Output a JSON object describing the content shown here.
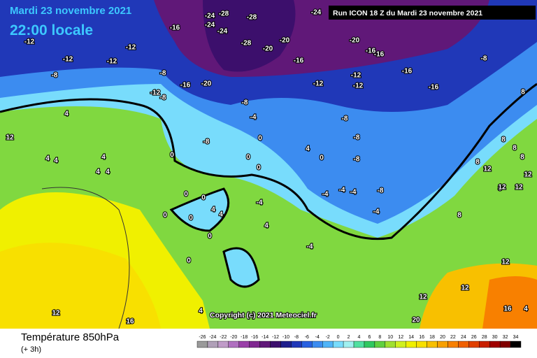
{
  "header": {
    "date": "Mardi 23 novembre 2021",
    "time": "22:00 locale",
    "run": "Run ICON 18 Z du Mardi 23 novembre 2021"
  },
  "copyright": "Copyright (c) 2021 Meteociel.fr",
  "footer": {
    "title": "Température 850hPa",
    "step": "(+ 3h)"
  },
  "legend": {
    "ticks": [
      -26,
      -24,
      -22,
      -20,
      -18,
      -16,
      -14,
      -12,
      -10,
      -8,
      -6,
      -4,
      -2,
      0,
      2,
      4,
      6,
      8,
      10,
      12,
      14,
      16,
      18,
      20,
      22,
      24,
      26,
      28,
      30,
      32,
      34
    ],
    "colors": [
      "#9a9a9a",
      "#b0a0b8",
      "#c09cc8",
      "#b070c0",
      "#9a40a8",
      "#802890",
      "#601878",
      "#3c0f6c",
      "#1e1e8c",
      "#2038b8",
      "#2860e0",
      "#3c8cf0",
      "#50b4f8",
      "#78dcfc",
      "#a0f0f0",
      "#50e0a0",
      "#30c860",
      "#60d040",
      "#a0e030",
      "#d0f020",
      "#f0f000",
      "#f8e000",
      "#f8c000",
      "#f8a000",
      "#f88000",
      "#f06000",
      "#e04000",
      "#c82000",
      "#a00000",
      "#800000",
      "#000000"
    ]
  },
  "map_labels": [
    -12,
    -12,
    -12,
    -12,
    -16,
    -24,
    -24,
    -24,
    -28,
    -28,
    -28,
    -20,
    -20,
    -20,
    -16,
    -24,
    -20,
    -16,
    -16,
    -16,
    -16,
    -12,
    -12,
    -12,
    -8,
    -8,
    -8,
    -12,
    -8,
    -16,
    -8,
    -8,
    -8,
    -8,
    -8,
    -8,
    -4,
    -4,
    -4,
    -4,
    -4,
    -4,
    -4,
    4,
    4,
    4,
    4,
    4,
    0,
    0,
    0,
    0,
    0,
    0,
    0,
    0,
    0,
    0,
    0,
    8,
    8,
    8,
    8,
    8,
    8,
    8,
    12,
    12,
    12,
    12,
    12,
    12,
    12,
    12,
    12,
    16,
    16,
    20,
    4,
    4,
    4,
    4,
    4,
    4,
    4
  ]
}
